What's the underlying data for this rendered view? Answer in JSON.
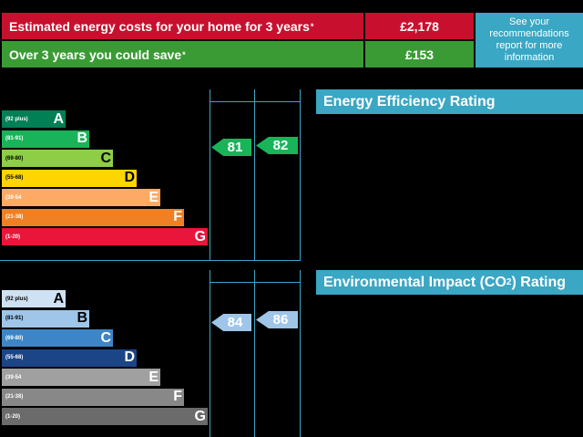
{
  "costs": {
    "row1": {
      "label": "Estimated energy costs for your home for 3 years",
      "value": "£2,178",
      "color": "#c8102e"
    },
    "row2": {
      "label": "Over 3 years you could save",
      "value": "£153",
      "color": "#3a9b35"
    },
    "star": "*",
    "info": "See your recommendations report for more information"
  },
  "energy": {
    "title": "Energy Efficiency Rating",
    "bands": [
      {
        "range": "(92 plus)",
        "letter": "A",
        "color": "#008054"
      },
      {
        "range": "(81-91)",
        "letter": "B",
        "color": "#19b459"
      },
      {
        "range": "(69-80)",
        "letter": "C",
        "color": "#8dce46"
      },
      {
        "range": "(55-68)",
        "letter": "D",
        "color": "#ffd500"
      },
      {
        "range": "(39-54",
        "letter": "E",
        "color": "#fcaa65"
      },
      {
        "range": "(21-38)",
        "letter": "F",
        "color": "#ef8023"
      },
      {
        "range": "(1-20)",
        "letter": "G",
        "color": "#e9153b"
      }
    ],
    "current": "81",
    "potential": "82",
    "arrow_color": "#19b459"
  },
  "environment": {
    "title_pre": "Environmental Impact (CO",
    "title_sub": "2",
    "title_post": ") Rating",
    "bands": [
      {
        "range": "(92 plus)",
        "letter": "A",
        "color": "#cfe2f3"
      },
      {
        "range": "(81-91)",
        "letter": "B",
        "color": "#9fc5e8"
      },
      {
        "range": "(69-80)",
        "letter": "C",
        "color": "#3d85c6"
      },
      {
        "range": "(55-68)",
        "letter": "D",
        "color": "#1c4587"
      },
      {
        "range": "(39-54",
        "letter": "E",
        "color": "#a0a0a0"
      },
      {
        "range": "(21-38)",
        "letter": "F",
        "color": "#888888"
      },
      {
        "range": "(1-20)",
        "letter": "G",
        "color": "#6b6b6b"
      }
    ],
    "current": "84",
    "potential": "86",
    "arrow_color": "#9fc5e8"
  }
}
